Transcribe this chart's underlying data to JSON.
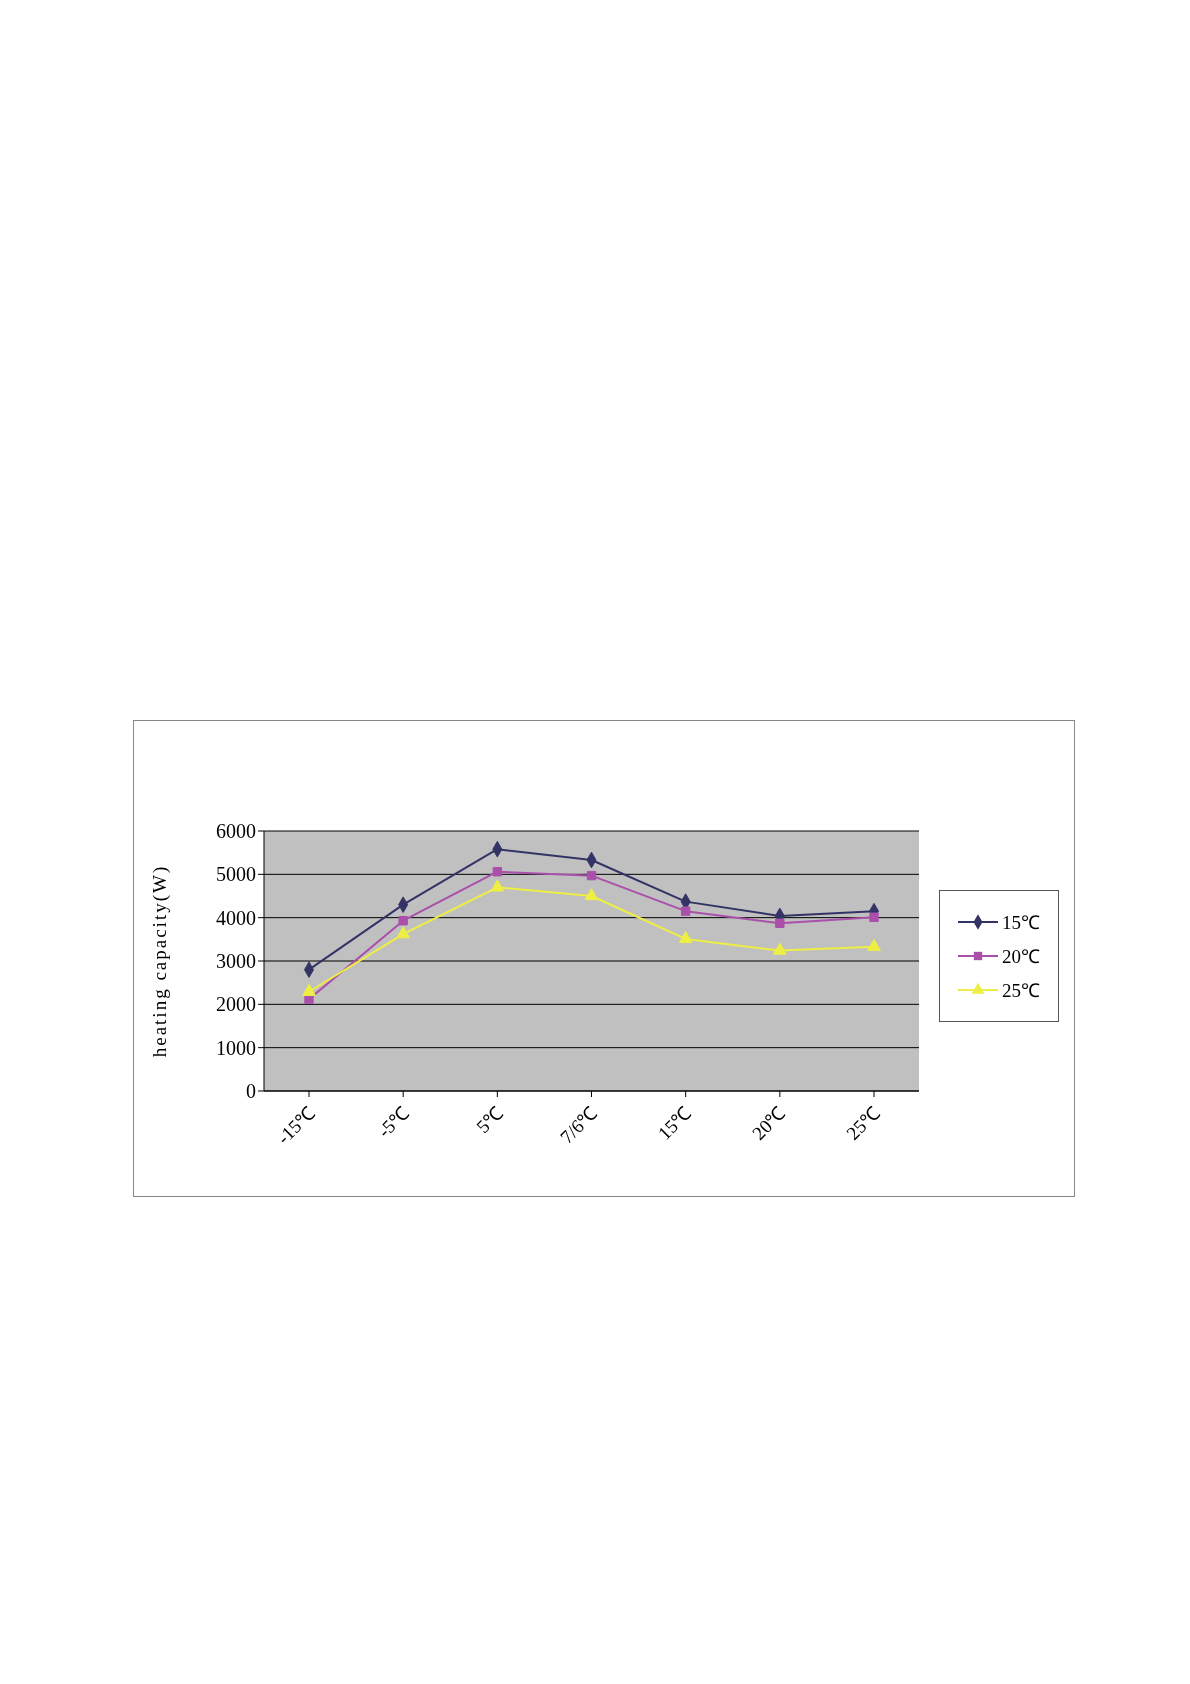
{
  "chart_data": {
    "type": "line",
    "ylabel": "heating capacity(W)",
    "categories": [
      "-15℃",
      "-5℃",
      "5℃",
      "7/6℃",
      "15℃",
      "20℃",
      "25℃"
    ],
    "series": [
      {
        "name": "15℃",
        "color": "#333366",
        "marker": "diamond",
        "values": [
          2800,
          4300,
          5580,
          5330,
          4370,
          4040,
          4150
        ]
      },
      {
        "name": "20℃",
        "color": "#aa50aa",
        "marker": "square",
        "values": [
          2120,
          3930,
          5060,
          4970,
          4150,
          3870,
          4010
        ]
      },
      {
        "name": "25℃",
        "color": "#eeee44",
        "marker": "triangle",
        "values": [
          2290,
          3620,
          4700,
          4500,
          3510,
          3240,
          3330
        ]
      }
    ],
    "ylim": [
      0,
      6000
    ],
    "yticks": [
      0,
      1000,
      2000,
      3000,
      4000,
      5000,
      6000
    ],
    "grid": "y",
    "legend": "right",
    "line_style": "solid"
  }
}
